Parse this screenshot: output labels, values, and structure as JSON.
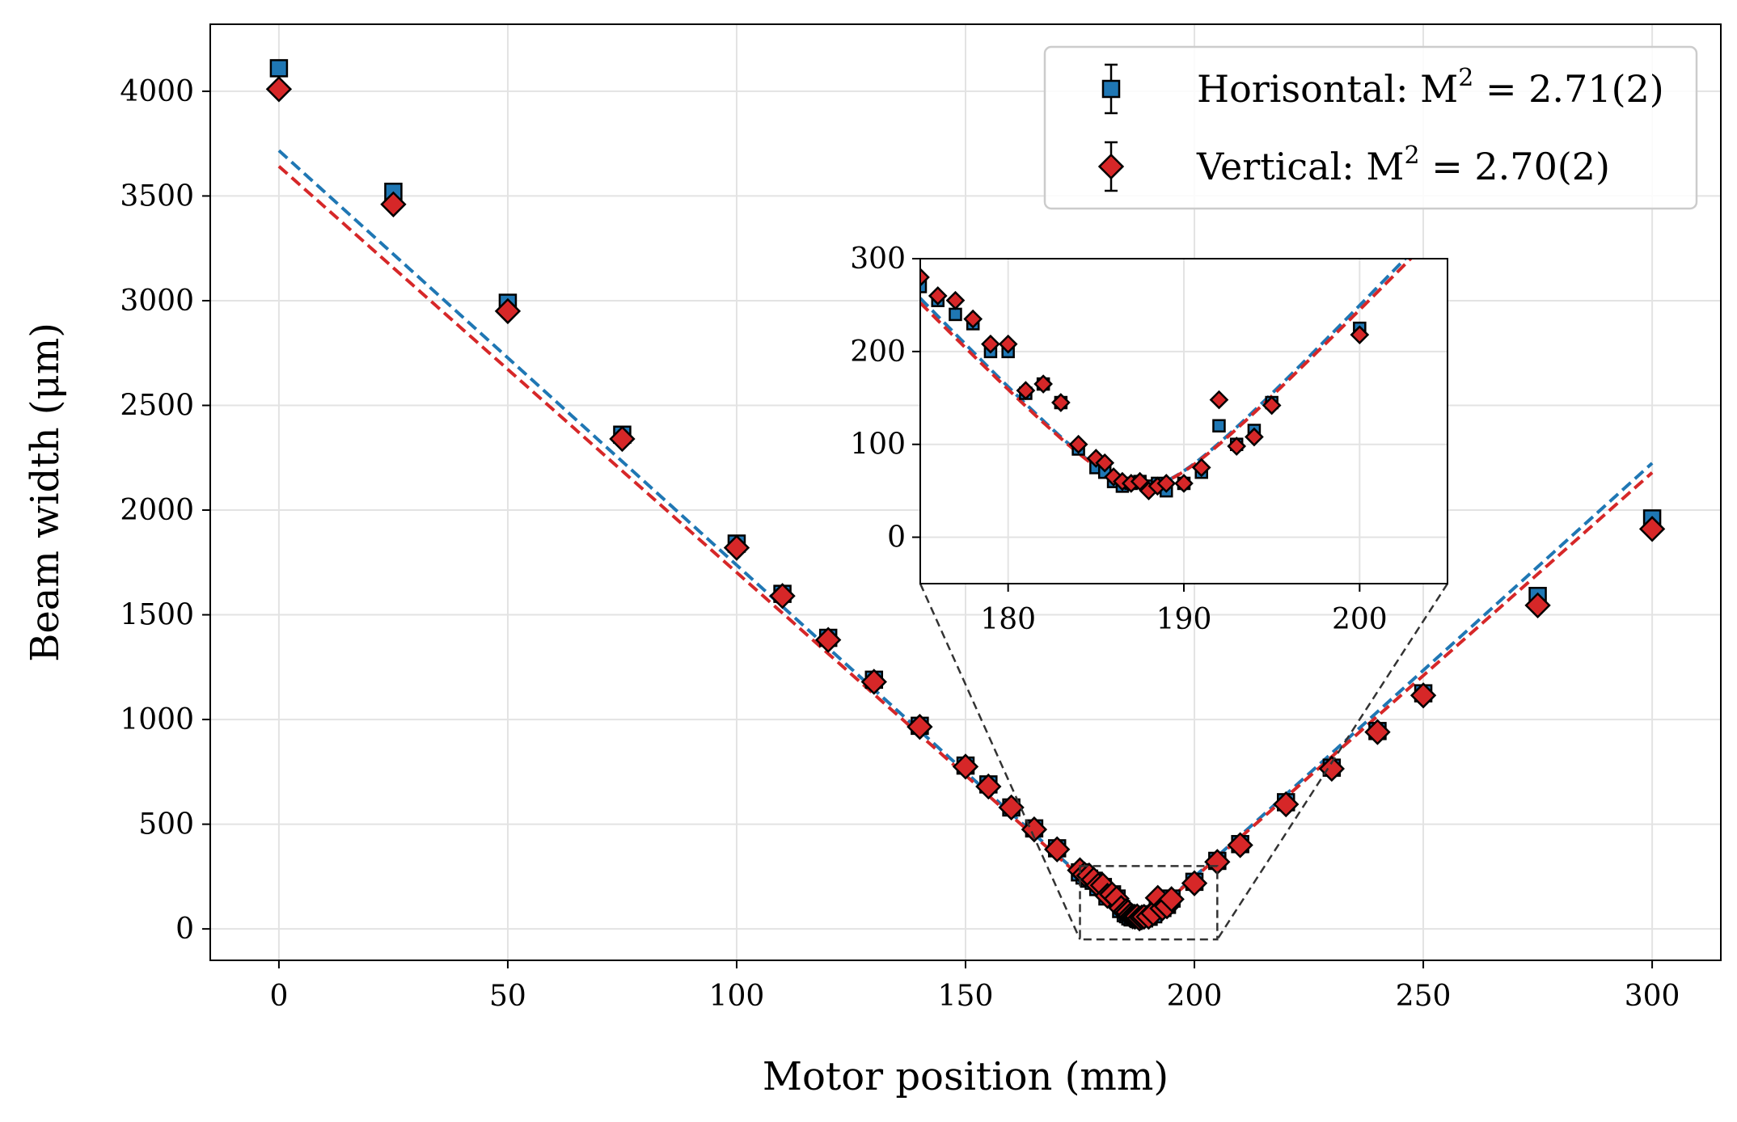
{
  "chart_data": {
    "type": "scatter",
    "xlabel": "Motor position (mm)",
    "ylabel": "Beam width (μm)",
    "xlim": [
      -15,
      315
    ],
    "ylim": [
      -150,
      4320
    ],
    "xticks": [
      0,
      50,
      100,
      150,
      200,
      250,
      300
    ],
    "yticks": [
      0,
      500,
      1000,
      1500,
      2000,
      2500,
      3000,
      3500,
      4000
    ],
    "grid": true,
    "legend_position": "top-right",
    "colors": {
      "horizontal": "#1f77b4",
      "vertical": "#d62728",
      "edge": "#000000"
    },
    "series": [
      {
        "name": "Horisontal",
        "legend_prefix": "Horisontal: M",
        "legend_sup": "2",
        "legend_suffix": " = 2.71(2)",
        "marker": "square",
        "x": [
          0,
          25,
          50,
          75,
          100,
          110,
          120,
          130,
          140,
          150,
          155,
          160,
          165,
          170,
          175,
          176,
          177,
          178,
          179,
          180,
          181,
          182,
          183,
          184,
          185,
          185.5,
          186,
          186.5,
          187,
          187.5,
          188,
          188.5,
          189,
          190,
          191,
          192,
          193,
          194,
          195,
          200,
          205,
          210,
          220,
          230,
          240,
          250,
          275,
          300
        ],
        "y": [
          4110,
          3520,
          2990,
          2360,
          1840,
          1600,
          1390,
          1190,
          970,
          780,
          690,
          580,
          480,
          385,
          270,
          255,
          240,
          230,
          200,
          200,
          155,
          165,
          145,
          95,
          75,
          70,
          60,
          55,
          58,
          60,
          55,
          58,
          50,
          58,
          70,
          120,
          100,
          115,
          145,
          225,
          325,
          405,
          605,
          770,
          945,
          1125,
          1590,
          1960
        ]
      },
      {
        "name": "Vertical",
        "legend_prefix": "Vertical: M",
        "legend_sup": "2",
        "legend_suffix": " = 2.70(2)",
        "marker": "diamond",
        "x": [
          0,
          25,
          50,
          75,
          100,
          110,
          120,
          130,
          140,
          150,
          155,
          160,
          165,
          170,
          175,
          176,
          177,
          178,
          179,
          180,
          181,
          182,
          183,
          184,
          185,
          185.5,
          186,
          186.5,
          187,
          187.5,
          188,
          188.5,
          189,
          190,
          191,
          192,
          193,
          194,
          195,
          200,
          205,
          210,
          220,
          230,
          240,
          250,
          275,
          300
        ],
        "y": [
          4010,
          3460,
          2950,
          2340,
          1820,
          1590,
          1380,
          1180,
          965,
          775,
          680,
          580,
          475,
          380,
          280,
          260,
          255,
          235,
          208,
          208,
          158,
          165,
          145,
          100,
          85,
          80,
          65,
          60,
          58,
          60,
          50,
          55,
          58,
          58,
          75,
          148,
          98,
          108,
          142,
          218,
          320,
          400,
          595,
          765,
          940,
          1115,
          1545,
          1910
        ]
      }
    ],
    "fits": [
      {
        "series": "Horisontal",
        "waist_x": 187.7,
        "waist_w": 55,
        "far_slope": 19.8
      },
      {
        "series": "Vertical",
        "waist_x": 187.7,
        "waist_w": 55,
        "far_slope": 19.4
      }
    ],
    "inset": {
      "xlim": [
        175,
        205
      ],
      "ylim": [
        -50,
        300
      ],
      "xticks": [
        180,
        190,
        200
      ],
      "yticks": [
        0,
        100,
        200,
        300
      ]
    }
  }
}
